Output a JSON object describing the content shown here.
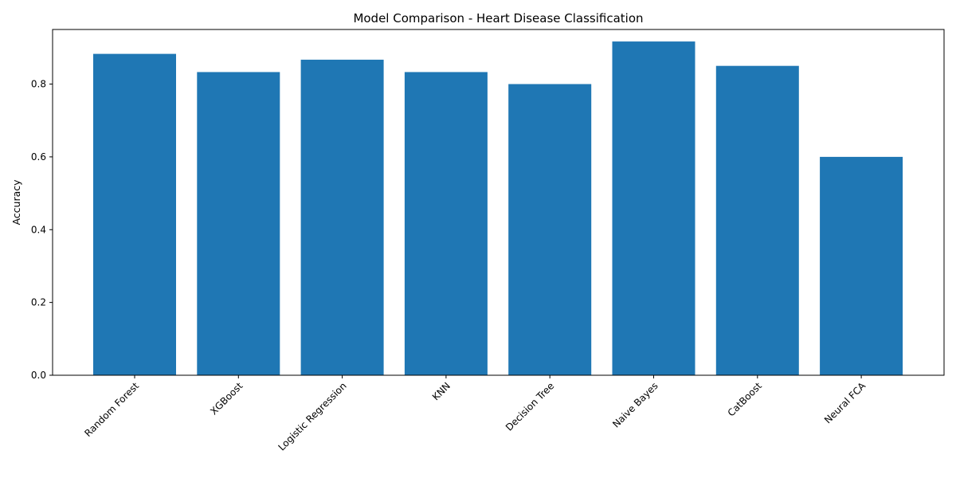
{
  "chart_data": {
    "type": "bar",
    "title": "Model Comparison - Heart Disease Classification",
    "xlabel": "",
    "ylabel": "Accuracy",
    "categories": [
      "Random Forest",
      "XGBoost",
      "Logistic Regression",
      "KNN",
      "Decision Tree",
      "Naive Bayes",
      "CatBoost",
      "Neural FCA"
    ],
    "values": [
      0.883,
      0.833,
      0.867,
      0.833,
      0.8,
      0.917,
      0.85,
      0.6
    ],
    "ylim": [
      0,
      0.95
    ],
    "yticks": [
      "0.0",
      "0.2",
      "0.4",
      "0.6",
      "0.8"
    ],
    "grid": false,
    "colors": {
      "bar": "#1f77b4",
      "axis": "#000000",
      "background": "#ffffff"
    }
  }
}
